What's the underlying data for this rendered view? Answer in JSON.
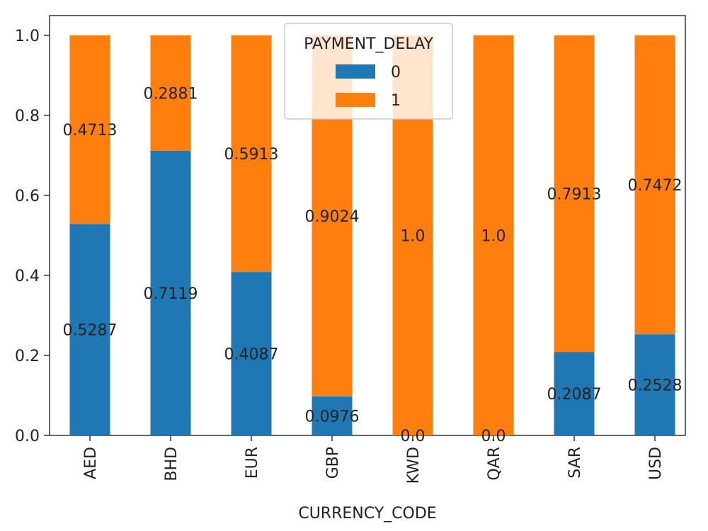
{
  "chart_data": {
    "type": "bar",
    "stacked": true,
    "title": "",
    "xlabel": "CURRENCY_CODE",
    "ylabel": "",
    "ylim": [
      0,
      1.0
    ],
    "yticks": [
      "0.0",
      "0.2",
      "0.4",
      "0.6",
      "0.8",
      "1.0"
    ],
    "categories": [
      "AED",
      "BHD",
      "EUR",
      "GBP",
      "KWD",
      "QAR",
      "SAR",
      "USD"
    ],
    "series": [
      {
        "name": "0",
        "color": "#1f77b4",
        "values": [
          0.5287,
          0.7119,
          0.4087,
          0.0976,
          0.0,
          0.0,
          0.2087,
          0.2528
        ],
        "labels": [
          "0.5287",
          "0.7119",
          "0.4087",
          "0.0976",
          "0.0",
          "0.0",
          "0.2087",
          "0.2528"
        ]
      },
      {
        "name": "1",
        "color": "#ff7f0e",
        "values": [
          0.4713,
          0.2881,
          0.5913,
          0.9024,
          1.0,
          1.0,
          0.7913,
          0.7472
        ],
        "labels": [
          "0.4713",
          "0.2881",
          "0.5913",
          "0.9024",
          "1.0",
          "1.0",
          "0.7913",
          "0.7472"
        ]
      }
    ],
    "legend": {
      "title": "PAYMENT_DELAY",
      "placement": "top-center"
    },
    "grid": false
  }
}
